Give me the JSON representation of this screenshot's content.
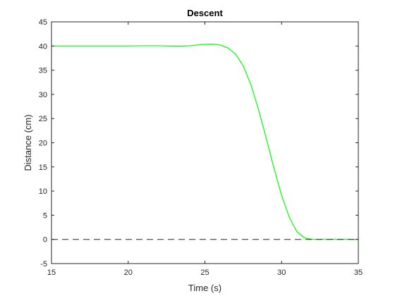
{
  "chart_data": {
    "type": "line",
    "title": "Descent",
    "xlabel": "Time (s)",
    "ylabel": "Distance (cm)",
    "xlim": [
      15,
      35
    ],
    "ylim": [
      -5,
      45
    ],
    "xticks": [
      15,
      20,
      25,
      30,
      35
    ],
    "yticks": [
      -5,
      0,
      5,
      10,
      15,
      20,
      25,
      30,
      35,
      40,
      45
    ],
    "grid": false,
    "box": true,
    "series": [
      {
        "color": "#00ff00",
        "style": "solid",
        "x": [
          15,
          16,
          17,
          18,
          19,
          20,
          21,
          22,
          22.5,
          23,
          23.5,
          24,
          24.5,
          25,
          25.5,
          26,
          26.5,
          27,
          27.5,
          28,
          28.5,
          29,
          29.5,
          30,
          30.5,
          31,
          31.5,
          32,
          32.5,
          33,
          33.5,
          34,
          35
        ],
        "y": [
          40,
          40,
          40,
          40,
          40,
          40,
          40.05,
          40.05,
          40,
          39.95,
          39.95,
          40.05,
          40.2,
          40.35,
          40.4,
          40.2,
          39.6,
          38.3,
          35.9,
          32.0,
          26.8,
          20.9,
          14.8,
          9.1,
          4.6,
          1.6,
          0.3,
          0.0,
          0.0,
          0.0,
          0.0,
          0.0,
          0.0
        ]
      },
      {
        "color": "#262626",
        "style": "dashed",
        "x": [
          15,
          35
        ],
        "y": [
          0,
          0
        ]
      }
    ]
  }
}
